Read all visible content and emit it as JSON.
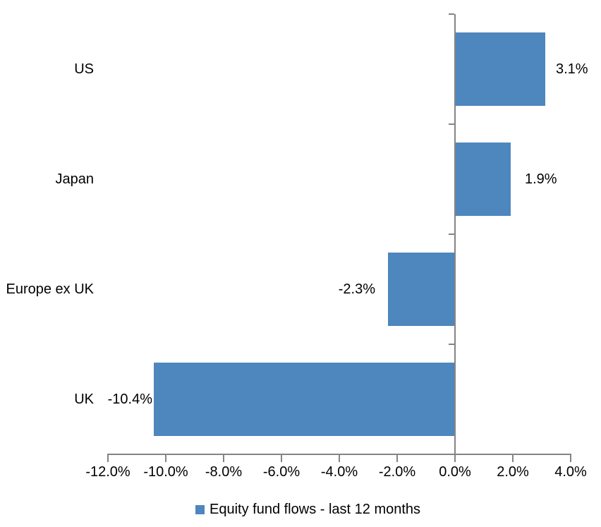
{
  "chart_data": {
    "type": "bar",
    "orientation": "horizontal",
    "title": "",
    "categories": [
      "US",
      "Japan",
      "Europe ex UK",
      "UK"
    ],
    "series": [
      {
        "name": "Equity fund flows - last 12 months",
        "values": [
          3.1,
          1.9,
          -2.3,
          -10.4
        ],
        "labels": [
          "3.1%",
          "1.9%",
          "-2.3%",
          "-10.4%"
        ]
      }
    ],
    "xlim": [
      -12,
      4
    ],
    "x_ticks": [
      -12,
      -10,
      -8,
      -6,
      -4,
      -2,
      0,
      2,
      4
    ],
    "x_tick_labels": [
      "-12.0%",
      "-10.0%",
      "-8.0%",
      "-6.0%",
      "-4.0%",
      "-2.0%",
      "0.0%",
      "2.0%",
      "4.0%"
    ],
    "grid": false,
    "legend": {
      "position": "bottom",
      "label": "Equity fund flows - last 12 months"
    },
    "colors": {
      "bar": "#4E86BE",
      "axis": "#848484",
      "text": "#000000"
    }
  }
}
